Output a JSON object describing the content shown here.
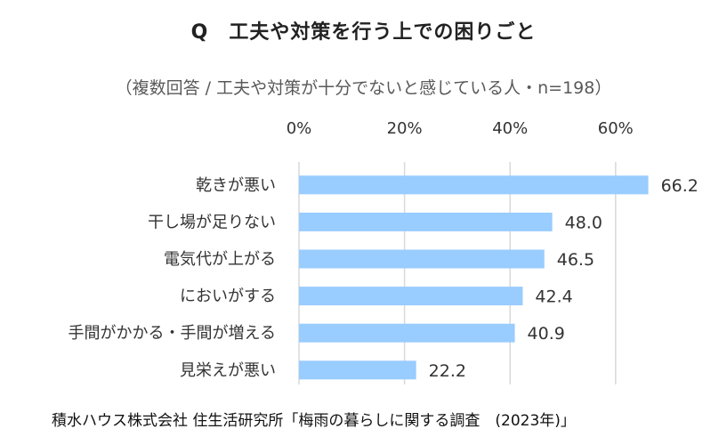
{
  "chart_data": {
    "type": "bar",
    "orientation": "horizontal",
    "title": "Q　工夫や対策を行う上での困りごと",
    "subtitle": "（複数回答 / 工夫や対策が十分でないと感じている人・n=198）",
    "categories": [
      "乾きが悪い",
      "干し場が足りない",
      "電気代が上がる",
      "においがする",
      "手間がかかる・手間が増える",
      "見栄えが悪い"
    ],
    "values": [
      66.2,
      48.0,
      46.5,
      42.4,
      40.9,
      22.2
    ],
    "value_labels": [
      "66.2",
      "48.0",
      "46.5",
      "42.4",
      "40.9",
      "22.2"
    ],
    "xlim": [
      0,
      70
    ],
    "xticks": [
      0,
      20,
      40,
      60
    ],
    "xtick_labels": [
      "0%",
      "20%",
      "40%",
      "60%"
    ],
    "xaxis_position": "top",
    "grid": true,
    "bar_color": "#99CCFF",
    "grid_color": "#D9D9D9",
    "source": "積水ハウス株式会社 住生活研究所「梅雨の暮らしに関する調査　(2023年)」"
  }
}
